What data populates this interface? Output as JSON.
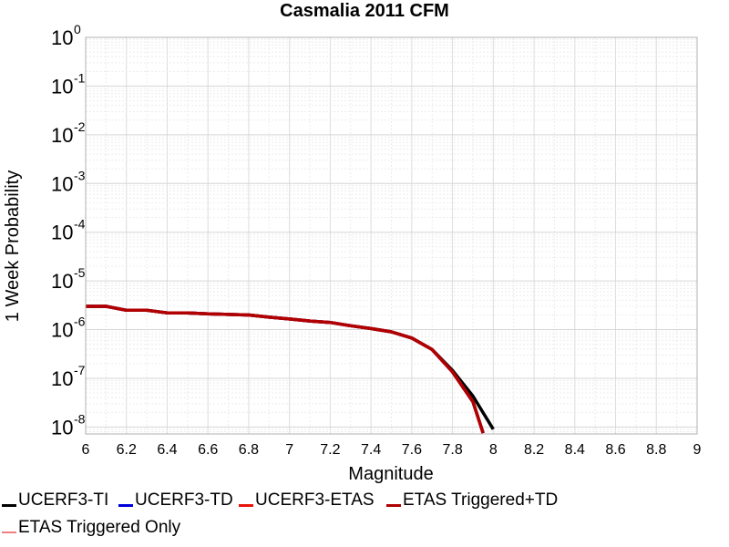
{
  "chart_data": {
    "type": "line",
    "title": "Casmalia 2011 CFM",
    "xlabel": "Magnitude",
    "ylabel": "1 Week Probability",
    "x_scale": "linear",
    "y_scale": "log",
    "xlim": [
      6,
      9
    ],
    "ylim": [
      7.2e-09,
      1
    ],
    "grid": true,
    "x_ticks": [
      "6",
      "6.2",
      "6.4",
      "6.6",
      "6.8",
      "7",
      "7.2",
      "7.4",
      "7.6",
      "7.8",
      "8",
      "8.2",
      "8.4",
      "8.6",
      "8.8",
      "9"
    ],
    "y_ticks": [
      {
        "value": 1,
        "base": "10",
        "exp": "0"
      },
      {
        "value": 0.1,
        "base": "10",
        "exp": "-1"
      },
      {
        "value": 0.01,
        "base": "10",
        "exp": "-2"
      },
      {
        "value": 0.001,
        "base": "10",
        "exp": "-3"
      },
      {
        "value": 0.0001,
        "base": "10",
        "exp": "-4"
      },
      {
        "value": 1e-05,
        "base": "10",
        "exp": "-5"
      },
      {
        "value": 1e-06,
        "base": "10",
        "exp": "-6"
      },
      {
        "value": 1e-07,
        "base": "10",
        "exp": "-7"
      },
      {
        "value": 1e-08,
        "base": "10",
        "exp": "-8"
      }
    ],
    "legend_position": "bottom",
    "series": [
      {
        "name": "UCERF3-TI",
        "color": "#000000",
        "x": [
          6.0,
          6.1,
          6.2,
          6.3,
          6.4,
          6.5,
          6.6,
          6.7,
          6.8,
          6.9,
          7.0,
          7.1,
          7.2,
          7.3,
          7.4,
          7.5,
          7.6,
          7.7,
          7.8,
          7.9,
          8.0
        ],
        "y": [
          3e-06,
          3e-06,
          2.5e-06,
          2.5e-06,
          2.2e-06,
          2.2e-06,
          2.1e-06,
          2.05e-06,
          2e-06,
          1.8e-06,
          1.65e-06,
          1.5e-06,
          1.4e-06,
          1.2e-06,
          1.05e-06,
          9e-07,
          6.7e-07,
          3.9e-07,
          1.45e-07,
          4.3e-08,
          9e-09
        ]
      },
      {
        "name": "UCERF3-TD",
        "color": "#0000dd",
        "x": [
          6.0,
          6.1,
          6.2,
          6.3,
          6.4,
          6.5,
          6.6,
          6.7,
          6.8,
          6.9,
          7.0,
          7.1,
          7.2,
          7.3,
          7.4,
          7.5,
          7.6,
          7.7,
          7.8,
          7.9,
          7.95
        ],
        "y": [
          3e-06,
          3e-06,
          2.5e-06,
          2.5e-06,
          2.2e-06,
          2.2e-06,
          2.1e-06,
          2.05e-06,
          2e-06,
          1.8e-06,
          1.65e-06,
          1.5e-06,
          1.4e-06,
          1.2e-06,
          1.05e-06,
          9e-07,
          6.7e-07,
          3.9e-07,
          1.35e-07,
          3.3e-08,
          7.5e-09
        ]
      },
      {
        "name": "UCERF3-ETAS",
        "color": "#e8140a",
        "x": [
          6.0,
          6.1,
          6.2,
          6.3,
          6.4,
          6.5,
          6.6,
          6.7,
          6.8,
          6.9,
          7.0,
          7.1,
          7.2,
          7.3,
          7.4,
          7.5,
          7.6,
          7.7,
          7.8,
          7.9,
          7.95
        ],
        "y": [
          3e-06,
          3e-06,
          2.5e-06,
          2.5e-06,
          2.2e-06,
          2.2e-06,
          2.1e-06,
          2.05e-06,
          2e-06,
          1.8e-06,
          1.65e-06,
          1.5e-06,
          1.4e-06,
          1.2e-06,
          1.05e-06,
          9e-07,
          6.7e-07,
          3.9e-07,
          1.35e-07,
          3.3e-08,
          7.5e-09
        ]
      },
      {
        "name": "ETAS Triggered+TD",
        "color": "#b00000",
        "x": [
          6.0,
          6.1,
          6.2,
          6.3,
          6.4,
          6.5,
          6.6,
          6.7,
          6.8,
          6.9,
          7.0,
          7.1,
          7.2,
          7.3,
          7.4,
          7.5,
          7.6,
          7.7,
          7.8,
          7.9,
          7.95
        ],
        "y": [
          3e-06,
          3e-06,
          2.5e-06,
          2.5e-06,
          2.2e-06,
          2.2e-06,
          2.1e-06,
          2.05e-06,
          2e-06,
          1.8e-06,
          1.65e-06,
          1.5e-06,
          1.4e-06,
          1.2e-06,
          1.05e-06,
          9e-07,
          6.7e-07,
          3.9e-07,
          1.35e-07,
          3.3e-08,
          7.5e-09
        ]
      },
      {
        "name": "ETAS Triggered Only",
        "color": "#f08080",
        "x": [],
        "y": []
      }
    ]
  }
}
